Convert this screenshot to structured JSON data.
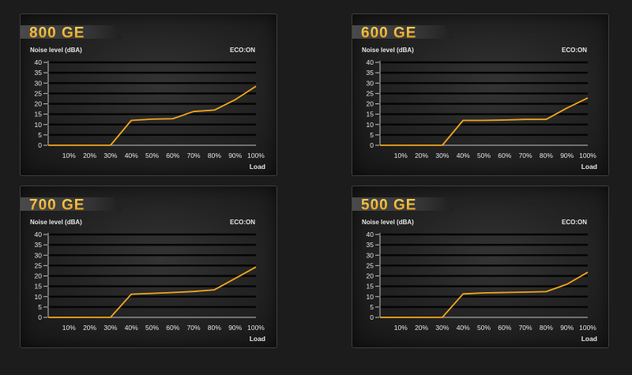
{
  "colors": {
    "accent": "#f0a51a",
    "title_text": "#f3b321",
    "banner_dark": "#3a3a3a",
    "label_text": "#e6e6e6"
  },
  "chart_data": [
    {
      "type": "line",
      "title": "800 GE",
      "status": "ECO:ON",
      "ylabel": "Noise level (dBA)",
      "xlabel": "Load",
      "x": [
        0,
        10,
        20,
        30,
        40,
        50,
        60,
        70,
        80,
        90,
        100
      ],
      "x_tick_labels": [
        "10%",
        "20%",
        "30%",
        "40%",
        "50%",
        "60%",
        "70%",
        "80%",
        "90%",
        "100%"
      ],
      "y_ticks": [
        0,
        5,
        10,
        15,
        20,
        25,
        30,
        35,
        40
      ],
      "ylim": [
        0,
        40
      ],
      "xlim": [
        0,
        100
      ],
      "grid": true,
      "series": [
        {
          "values": [
            0,
            0,
            0,
            0,
            12,
            12.6,
            12.8,
            16.3,
            17,
            22,
            28.5
          ]
        }
      ]
    },
    {
      "type": "line",
      "title": "600 GE",
      "status": "ECO:ON",
      "ylabel": "Noise level (dBA)",
      "xlabel": "Load",
      "x": [
        0,
        10,
        20,
        30,
        40,
        50,
        60,
        70,
        80,
        90,
        100
      ],
      "x_tick_labels": [
        "10%",
        "20%",
        "30%",
        "40%",
        "50%",
        "60%",
        "70%",
        "80%",
        "90%",
        "100%"
      ],
      "y_ticks": [
        0,
        5,
        10,
        15,
        20,
        25,
        30,
        35,
        40
      ],
      "ylim": [
        0,
        40
      ],
      "xlim": [
        0,
        100
      ],
      "grid": true,
      "series": [
        {
          "values": [
            0,
            0,
            0,
            0,
            12,
            12,
            12.2,
            12.5,
            12.5,
            18,
            22.8
          ]
        }
      ]
    },
    {
      "type": "line",
      "title": "700 GE",
      "status": "ECO:ON",
      "ylabel": "Noise level (dBA)",
      "xlabel": "Load",
      "x": [
        0,
        10,
        20,
        30,
        40,
        50,
        60,
        70,
        80,
        90,
        100
      ],
      "x_tick_labels": [
        "10%",
        "20%",
        "30%",
        "40%",
        "50%",
        "60%",
        "70%",
        "80%",
        "90%",
        "100%"
      ],
      "y_ticks": [
        0,
        5,
        10,
        15,
        20,
        25,
        30,
        35,
        40
      ],
      "ylim": [
        0,
        40
      ],
      "xlim": [
        0,
        100
      ],
      "grid": true,
      "series": [
        {
          "values": [
            0,
            0,
            0,
            0,
            11.2,
            11.6,
            12,
            12.5,
            13.3,
            18.8,
            24.3
          ]
        }
      ]
    },
    {
      "type": "line",
      "title": "500 GE",
      "status": "ECO:ON",
      "ylabel": "Noise level (dBA)",
      "xlabel": "Load",
      "x": [
        0,
        10,
        20,
        30,
        40,
        50,
        60,
        70,
        80,
        90,
        100
      ],
      "x_tick_labels": [
        "10%",
        "20%",
        "30%",
        "40%",
        "50%",
        "60%",
        "70%",
        "80%",
        "90%",
        "100%"
      ],
      "y_ticks": [
        0,
        5,
        10,
        15,
        20,
        25,
        30,
        35,
        40
      ],
      "ylim": [
        0,
        40
      ],
      "xlim": [
        0,
        100
      ],
      "grid": true,
      "series": [
        {
          "values": [
            0,
            0,
            0,
            0,
            11.3,
            11.8,
            12,
            12.2,
            12.4,
            16,
            21.8
          ]
        }
      ]
    }
  ]
}
